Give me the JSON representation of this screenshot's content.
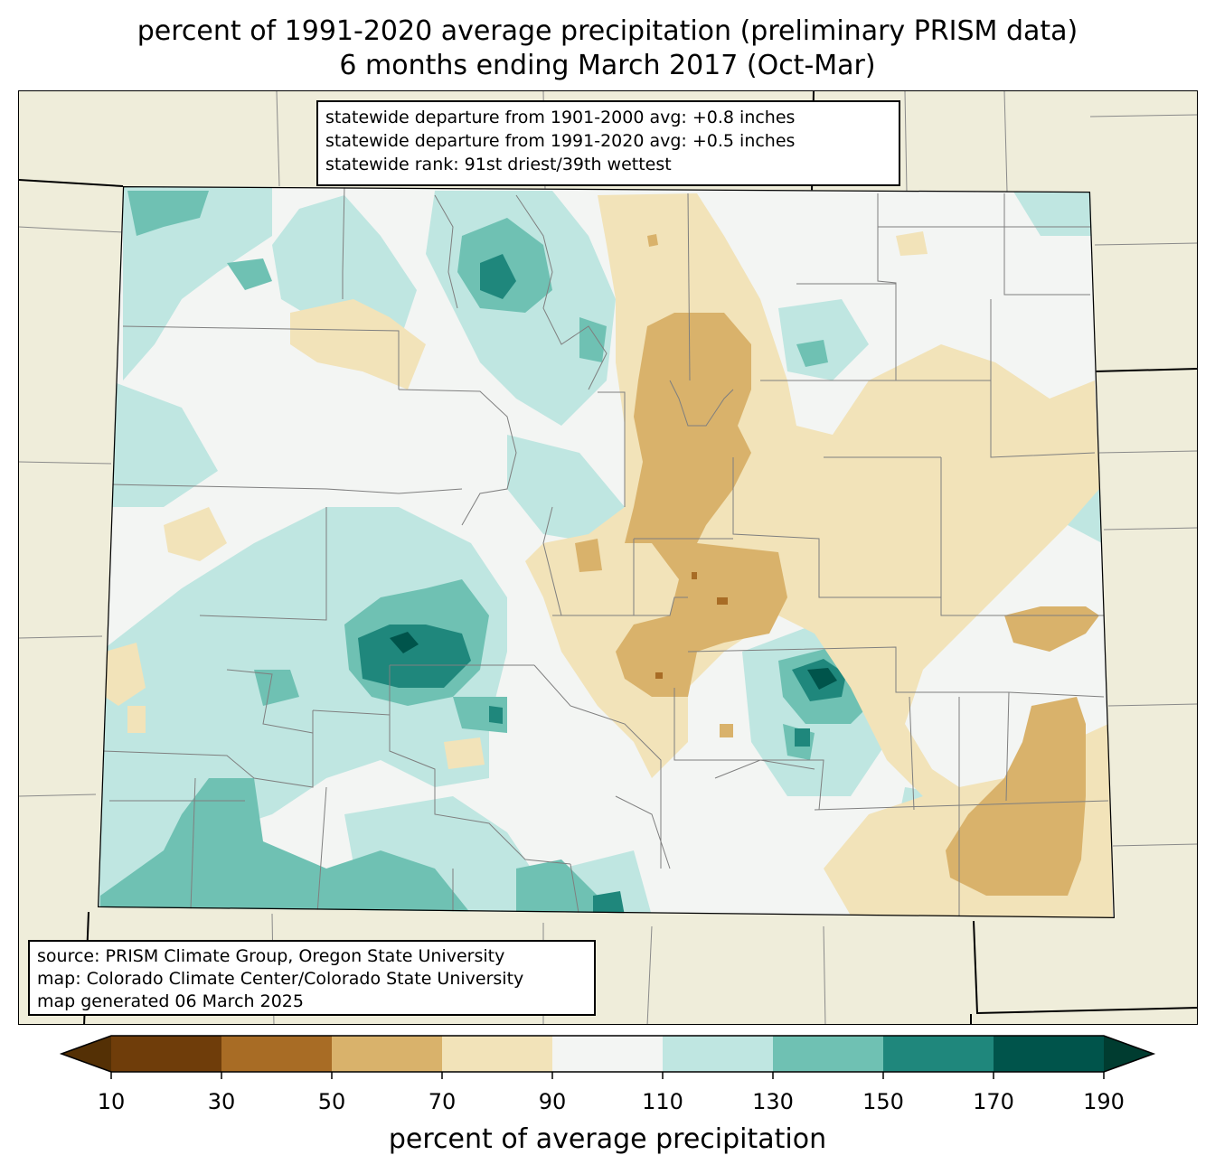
{
  "title": {
    "line1": "percent of 1991-2020 average precipitation (preliminary PRISM data)",
    "line2": "6 months ending March 2017 (Oct-Mar)"
  },
  "stats": {
    "line1": "statewide departure from 1901-2000 avg: +0.8 inches",
    "line2": "statewide departure from 1991-2020 avg: +0.5 inches",
    "line3": "statewide rank: 91st driest/39th wettest"
  },
  "source": {
    "line1": "source: PRISM Climate Group, Oregon State University",
    "line2": "map: Colorado Climate Center/Colorado State University",
    "line3": "map generated 06 March 2025"
  },
  "colorbar": {
    "label": "percent of average precipitation",
    "ticks": [
      "10",
      "30",
      "50",
      "70",
      "90",
      "110",
      "130",
      "150",
      "170",
      "190"
    ],
    "colors": [
      "#6f3d0a",
      "#a86c25",
      "#d9b26b",
      "#f2e3b9",
      "#f3f5f3",
      "#bfe6e1",
      "#6fc1b3",
      "#1f877c",
      "#00544b"
    ],
    "extend_low_color": "#543005",
    "extend_high_color": "#003c30"
  },
  "colors": {
    "land_outside": "#efedda",
    "state_border": "#000000",
    "county_line": "#808080"
  }
}
